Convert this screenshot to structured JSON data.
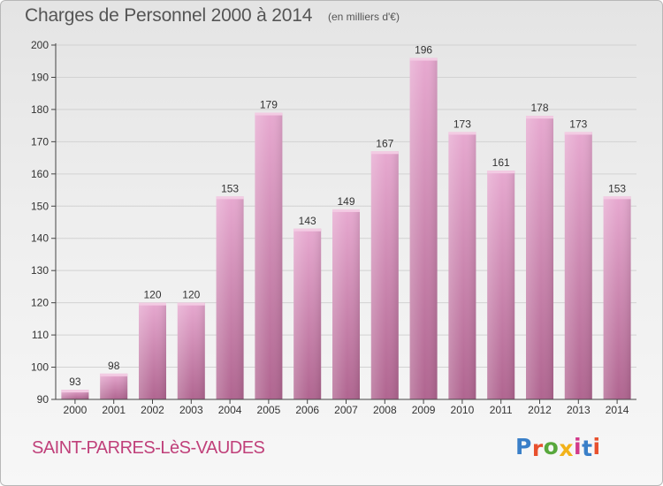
{
  "header": {
    "title": "Charges de Personnel 2000 à 2014",
    "subtitle": "(en milliers d'€)"
  },
  "footer": {
    "commune": "SAINT-PARRES-LèS-VAUDES",
    "logo_text": "Proxiti",
    "logo_colors": [
      "#3a7fc8",
      "#e8502d",
      "#58a83c",
      "#f2b21a",
      "#d23a8a",
      "#3a7fc8",
      "#e8502d"
    ]
  },
  "colors": {
    "bar_top": "#e7a9d0",
    "bar_bottom": "#b06590",
    "bar_highlight": "#f3cbe3",
    "axis": "#444444",
    "grid": "#d2d2d2",
    "text": "#333333"
  },
  "chart_data": {
    "type": "bar",
    "categories": [
      "2000",
      "2001",
      "2002",
      "2003",
      "2004",
      "2005",
      "2006",
      "2007",
      "2008",
      "2009",
      "2010",
      "2011",
      "2012",
      "2013",
      "2014"
    ],
    "values": [
      93,
      98,
      120,
      120,
      153,
      179,
      143,
      149,
      167,
      196,
      173,
      161,
      178,
      173,
      153
    ],
    "data_labels": [
      "93",
      "98",
      "120",
      "120",
      "153",
      "179",
      "143",
      "149",
      "167",
      "196",
      "173",
      "161",
      "178",
      "173",
      "153"
    ],
    "ylim": [
      90,
      200
    ],
    "yticks": [
      90,
      100,
      110,
      120,
      130,
      140,
      150,
      160,
      170,
      180,
      190,
      200
    ],
    "grid": true,
    "title": "Charges de Personnel 2000 à 2014",
    "xlabel": "",
    "ylabel": ""
  }
}
